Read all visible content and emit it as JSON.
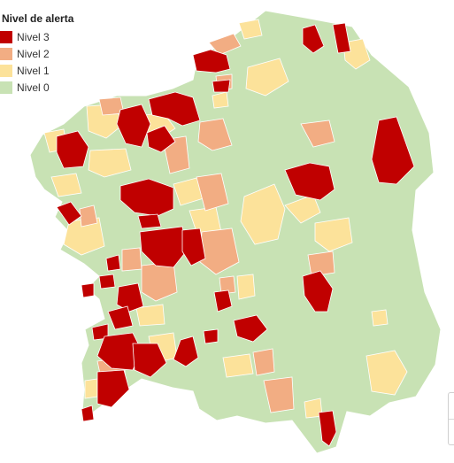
{
  "legend": {
    "title": "Nivel de alerta",
    "items": [
      {
        "label": "Nivel 3",
        "color": "#c00000"
      },
      {
        "label": "Nivel 2",
        "color": "#f2ad83"
      },
      {
        "label": "Nivel 1",
        "color": "#fce29a"
      },
      {
        "label": "Nivel 0",
        "color": "#c8e2b4"
      }
    ]
  },
  "map": {
    "base_color": "#c8e2b4",
    "border_color": "#ffffff"
  }
}
